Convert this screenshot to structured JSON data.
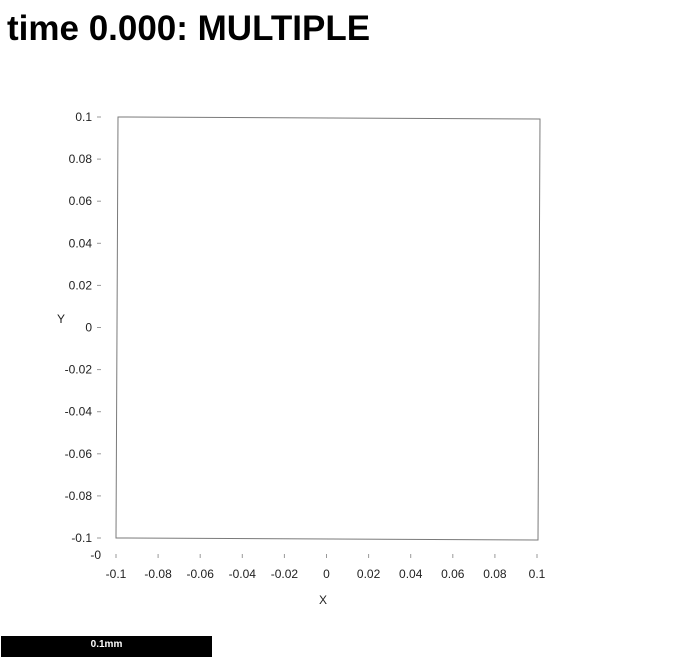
{
  "chart_data": {
    "type": "scatter",
    "title": "time 0.000: MULTIPLE",
    "xlabel": "X",
    "ylabel": "Y",
    "xlim": [
      -0.1,
      0.1
    ],
    "ylim": [
      -0.1,
      0.1
    ],
    "x_ticks": [
      "-0.1",
      "-0.08",
      "-0.06",
      "-0.04",
      "-0.02",
      "0",
      "0.02",
      "0.04",
      "0.06",
      "0.08",
      "0.1"
    ],
    "y_ticks": [
      "0.1",
      "0.08",
      "0.06",
      "0.04",
      "0.02",
      "0",
      "-0.02",
      "-0.04",
      "-0.06",
      "-0.08",
      "-0.1"
    ],
    "corner_label": "-0",
    "grid": false,
    "series": [],
    "boundary": [
      {
        "x": -0.1,
        "y": 0.1
      },
      {
        "x": 0.1,
        "y": 0.1
      },
      {
        "x": 0.1,
        "y": -0.1
      },
      {
        "x": -0.1,
        "y": -0.1
      }
    ]
  },
  "scale_bar": {
    "label": "0.1mm"
  }
}
